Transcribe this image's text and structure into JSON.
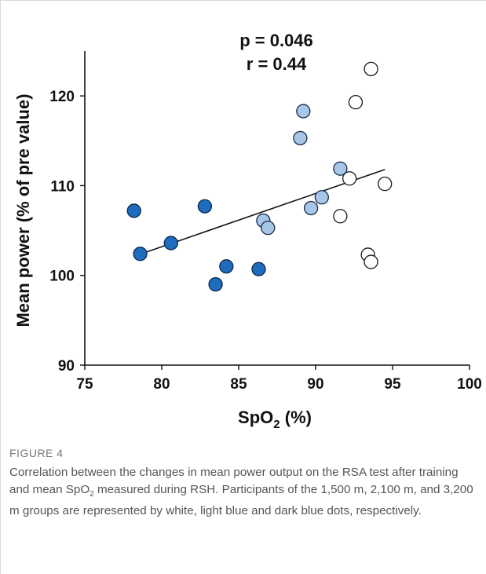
{
  "chart_data": {
    "type": "scatter",
    "annotations": [
      "p = 0.046",
      "r = 0.44"
    ],
    "xlabel": "SpO",
    "xlabel_sub": "2",
    "xlabel_suffix": " (%)",
    "ylabel": "Mean power (% of pre value)",
    "xlim": [
      75,
      100
    ],
    "ylim": [
      90,
      125
    ],
    "xticks": [
      75,
      80,
      85,
      90,
      95,
      100
    ],
    "yticks": [
      90,
      100,
      110,
      120
    ],
    "grid": false,
    "legend": "none",
    "trendline": {
      "x": [
        78.5,
        94.5
      ],
      "y": [
        102.3,
        111.8
      ]
    },
    "series": [
      {
        "fill": "#ffffff",
        "stroke": "#1a1a1a",
        "x": [
          93.6,
          92.6,
          92.2,
          94.5,
          91.6,
          93.4,
          93.6
        ],
        "y": [
          123.0,
          119.3,
          110.8,
          110.2,
          106.6,
          102.3,
          101.5
        ]
      },
      {
        "fill": "#a7c6e8",
        "stroke": "#1a2c47",
        "x": [
          89.2,
          89.0,
          91.6,
          90.4,
          89.7,
          86.6,
          86.9
        ],
        "y": [
          118.3,
          115.3,
          111.9,
          108.7,
          107.5,
          106.1,
          105.3
        ]
      },
      {
        "fill": "#1f6bbd",
        "stroke": "#0d2747",
        "x": [
          78.2,
          78.6,
          80.6,
          82.8,
          84.2,
          83.5,
          86.3
        ],
        "y": [
          107.2,
          102.4,
          103.6,
          107.7,
          101.0,
          99.0,
          100.7
        ]
      }
    ]
  },
  "caption": {
    "label": "FIGURE 4",
    "text_before": "Correlation between the changes in mean power output on the RSA test after training and mean SpO",
    "text_sub": "2",
    "text_after": " measured during RSH. Participants of the 1,500 m, 2,100 m, and 3,200 m groups are represented by white, light blue and dark blue dots, respectively."
  }
}
